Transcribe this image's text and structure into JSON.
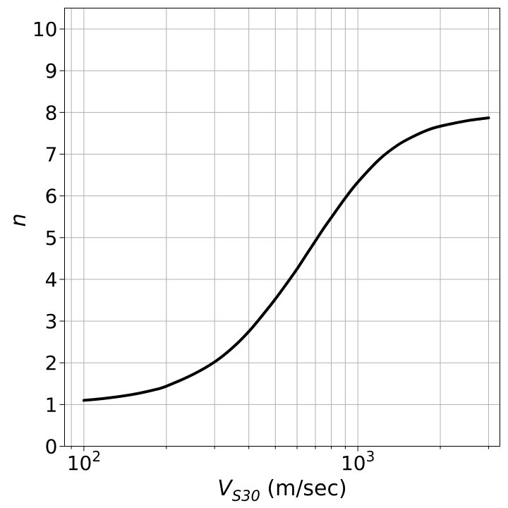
{
  "chart_data": {
    "type": "line",
    "title": "",
    "xlabel": {
      "main": "V",
      "sub": "S30",
      "units": " (m/sec)"
    },
    "ylabel": "n",
    "xscale": "log",
    "xlim": [
      85,
      3300
    ],
    "ylim": [
      0,
      10.5
    ],
    "grid": true,
    "x_major_ticks": [
      {
        "value": 100,
        "base": "10",
        "exp": "2"
      },
      {
        "value": 1000,
        "base": "10",
        "exp": "3"
      }
    ],
    "x_minor_ticks": [
      90,
      200,
      300,
      400,
      500,
      600,
      700,
      800,
      900,
      2000,
      3000
    ],
    "y_ticks": [
      {
        "value": 0,
        "label": "0"
      },
      {
        "value": 1,
        "label": "1"
      },
      {
        "value": 2,
        "label": "2"
      },
      {
        "value": 3,
        "label": "3"
      },
      {
        "value": 4,
        "label": "4"
      },
      {
        "value": 5,
        "label": "5"
      },
      {
        "value": 6,
        "label": "6"
      },
      {
        "value": 7,
        "label": "7"
      },
      {
        "value": 8,
        "label": "8"
      },
      {
        "value": 9,
        "label": "9"
      },
      {
        "value": 10,
        "label": "10"
      }
    ],
    "series": [
      {
        "color": "#000000",
        "x": [
          100,
          120,
          150,
          180,
          200,
          250,
          300,
          350,
          400,
          450,
          500,
          550,
          600,
          650,
          700,
          750,
          800,
          900,
          1000,
          1200,
          1400,
          1600,
          1800,
          2000,
          2500,
          3000
        ],
        "y": [
          1.1,
          1.15,
          1.24,
          1.35,
          1.44,
          1.72,
          2.02,
          2.37,
          2.75,
          3.15,
          3.53,
          3.9,
          4.25,
          4.6,
          4.92,
          5.22,
          5.48,
          5.95,
          6.33,
          6.88,
          7.22,
          7.43,
          7.58,
          7.67,
          7.8,
          7.87
        ]
      }
    ]
  }
}
